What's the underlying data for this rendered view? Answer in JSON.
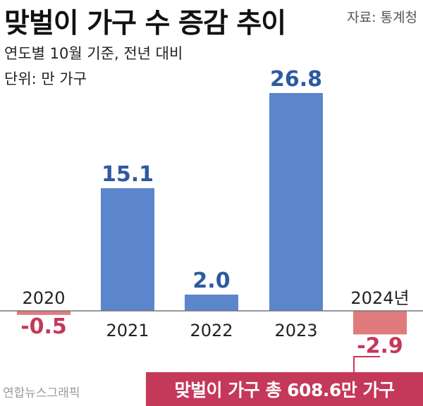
{
  "header": {
    "title": "맞벌이 가구 수 증감 추이",
    "source": "자료: 통계청",
    "subtitle_line1": "연도별 10월 기준, 전년 대비",
    "subtitle_line2": "단위: 만 가구"
  },
  "footer": {
    "credit": "연합뉴스그래픽",
    "total_label": "맞벌이 가구 총 608.6만 가구"
  },
  "colors": {
    "positive": "#5b86cc",
    "negative": "#e07b7d",
    "positive_label": "#2d5aa0",
    "negative_label": "#c4385a",
    "total_box": "#c4385a"
  },
  "chart_data": {
    "type": "bar",
    "title": "맞벌이 가구 수 증감 추이",
    "subtitle": "연도별 10월 기준, 전년 대비",
    "unit": "단위: 만 가구",
    "categories": [
      "2020",
      "2021",
      "2022",
      "2023",
      "2024년"
    ],
    "values": [
      -0.5,
      15.1,
      2.0,
      26.8,
      -2.9
    ],
    "value_labels": [
      "-0.5",
      "15.1",
      "2.0",
      "26.8",
      "-2.9"
    ],
    "xlabel": "",
    "ylabel": "",
    "ylim": [
      -3.5,
      28
    ],
    "grid": false,
    "legend": "none"
  }
}
